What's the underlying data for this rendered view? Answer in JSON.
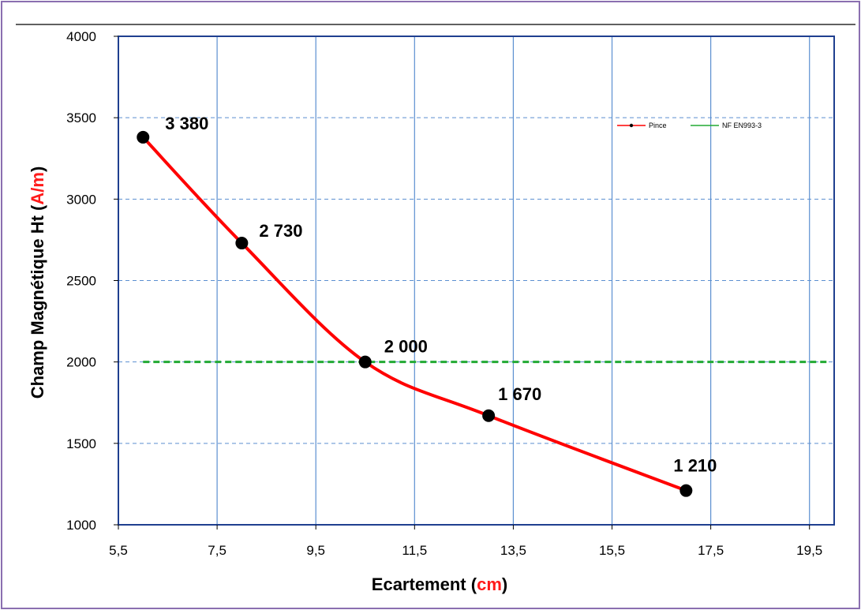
{
  "chart_data": {
    "type": "line",
    "xlabel": "Ecartement",
    "xunit": "cm",
    "ylabel": "Champ Magnétique Ht",
    "yunit": "A/m",
    "xlim": [
      5.5,
      20
    ],
    "ylim": [
      1000,
      4000
    ],
    "xticks": [
      5.5,
      7.5,
      9.5,
      11.5,
      13.5,
      15.5,
      17.5,
      19.5
    ],
    "xtick_labels": [
      "5,5",
      "7,5",
      "9,5",
      "11,5",
      "13,5",
      "15,5",
      "17,5",
      "19,5"
    ],
    "yticks": [
      1000,
      1500,
      2000,
      2500,
      3000,
      3500,
      4000
    ],
    "ytick_labels": [
      "1000",
      "1500",
      "2000",
      "2500",
      "3000",
      "3500",
      "4000"
    ],
    "grid": true,
    "legend_position": "top-right",
    "series": [
      {
        "name": "Pince",
        "color": "#ff0000",
        "marker_color": "#000000",
        "x": [
          6,
          8,
          10.5,
          13,
          17
        ],
        "y": [
          3380,
          2730,
          2000,
          1670,
          1210
        ],
        "labels": [
          "3 380",
          "2 730",
          "2 000",
          "1 670",
          "1 210"
        ]
      },
      {
        "name": "NF EN993-3",
        "color": "#22aa33",
        "style": "dashed",
        "x": [
          6,
          19.9
        ],
        "y": [
          2000,
          2000
        ]
      }
    ]
  },
  "colors": {
    "frame": "#8a6fb0",
    "plot_border": "#1f3f8f",
    "vertical_grid": "#5b8fd0",
    "horizontal_grid": "#5b8fd0"
  }
}
